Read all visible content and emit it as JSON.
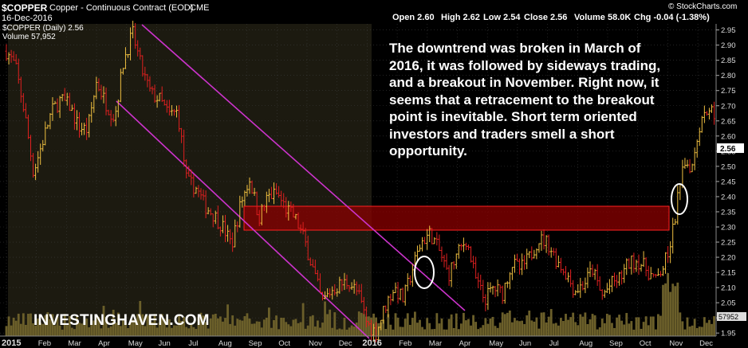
{
  "header": {
    "symbol": "$COPPER",
    "description": "Copper - Continuous Contract (EOD)",
    "exchange": "CME",
    "date": "16-Dec-2016",
    "open": "Open 2.60",
    "high": "High 2.62",
    "low": "Low 2.54",
    "close": "Close 2.56",
    "volume": "Volume 58.0K",
    "change": "Chg -0.04 (-1.38%)",
    "source": "© StockCharts.com",
    "legend_price": "$COPPER (Daily) 2.56",
    "legend_volume": "Volume 57,952"
  },
  "annotation": "The downtrend was broken in March of 2016, it was followed by sideways trading, and a breakout in November. Right now, it seems that a retracement to the breakout point is inevitable. Short term oriented investors and traders smell a short opportunity.",
  "watermark": "INVESTINGHAVEN.COM",
  "colors": {
    "up": "#f0c040",
    "down": "#e02020",
    "channel": "#cc33cc",
    "zone": "#8b0000",
    "volume": "#6b5f2a",
    "highlight_bg": "#1c1a10",
    "last_price_bg": "#ffffff"
  },
  "chart_data": {
    "type": "line",
    "title": "$COPPER (Daily)",
    "ylim": [
      1.94,
      2.97
    ],
    "y_ticks": [
      1.95,
      2.0,
      2.05,
      2.1,
      2.15,
      2.2,
      2.25,
      2.3,
      2.35,
      2.4,
      2.45,
      2.5,
      2.55,
      2.6,
      2.65,
      2.7,
      2.75,
      2.8,
      2.85,
      2.9,
      2.95
    ],
    "x_ticks": [
      "2015",
      "Feb",
      "Mar",
      "Apr",
      "May",
      "Jun",
      "Jul",
      "Aug",
      "Sep",
      "Oct",
      "Nov",
      "Dec",
      "2016",
      "Feb",
      "Mar",
      "Apr",
      "May",
      "Jun",
      "Jul",
      "Aug",
      "Sep",
      "Oct",
      "Nov",
      "Dec"
    ],
    "x_months": [
      0,
      1,
      2,
      3,
      4,
      5,
      6,
      7,
      8,
      9,
      10,
      11,
      12,
      13,
      14,
      15,
      16,
      17,
      18,
      19,
      20,
      21,
      22,
      23
    ],
    "last_price": "2.56",
    "last_volume": "57952",
    "series": [
      {
        "name": "$COPPER (Daily)",
        "x": [
          0,
          0.3,
          0.6,
          0.9,
          1.2,
          1.5,
          1.8,
          2.1,
          2.4,
          2.7,
          3.0,
          3.3,
          3.6,
          3.9,
          4.2,
          4.5,
          4.8,
          5.1,
          5.4,
          5.7,
          6.0,
          6.3,
          6.6,
          6.9,
          7.2,
          7.5,
          7.8,
          8.1,
          8.4,
          8.7,
          9.0,
          9.3,
          9.6,
          9.9,
          10.2,
          10.5,
          10.8,
          11.1,
          11.4,
          11.7,
          12.0,
          12.3,
          12.6,
          12.9,
          13.2,
          13.5,
          13.8,
          14.1,
          14.4,
          14.7,
          15.0,
          15.3,
          15.6,
          15.9,
          16.2,
          16.5,
          16.8,
          17.1,
          17.4,
          17.7,
          18.0,
          18.3,
          18.6,
          18.9,
          19.2,
          19.5,
          19.8,
          20.1,
          20.4,
          20.7,
          21.0,
          21.3,
          21.6,
          21.9,
          22.2,
          22.5,
          22.8,
          23.1,
          23.4,
          23.7,
          24.0
        ],
        "y": [
          2.88,
          2.83,
          2.68,
          2.48,
          2.58,
          2.68,
          2.72,
          2.7,
          2.63,
          2.62,
          2.78,
          2.71,
          2.66,
          2.85,
          2.94,
          2.82,
          2.74,
          2.72,
          2.67,
          2.68,
          2.45,
          2.43,
          2.37,
          2.34,
          2.3,
          2.24,
          2.38,
          2.46,
          2.33,
          2.4,
          2.41,
          2.36,
          2.33,
          2.26,
          2.16,
          2.05,
          2.09,
          2.11,
          2.12,
          2.08,
          1.98,
          1.95,
          2.04,
          2.1,
          2.06,
          2.16,
          2.25,
          2.28,
          2.22,
          2.14,
          2.21,
          2.26,
          2.13,
          2.06,
          2.1,
          2.08,
          2.18,
          2.16,
          2.2,
          2.26,
          2.25,
          2.19,
          2.15,
          2.09,
          2.11,
          2.16,
          2.07,
          2.11,
          2.13,
          2.18,
          2.19,
          2.16,
          2.12,
          2.18,
          2.3,
          2.52,
          2.5,
          2.66,
          2.7,
          2.6,
          2.56
        ]
      }
    ]
  }
}
